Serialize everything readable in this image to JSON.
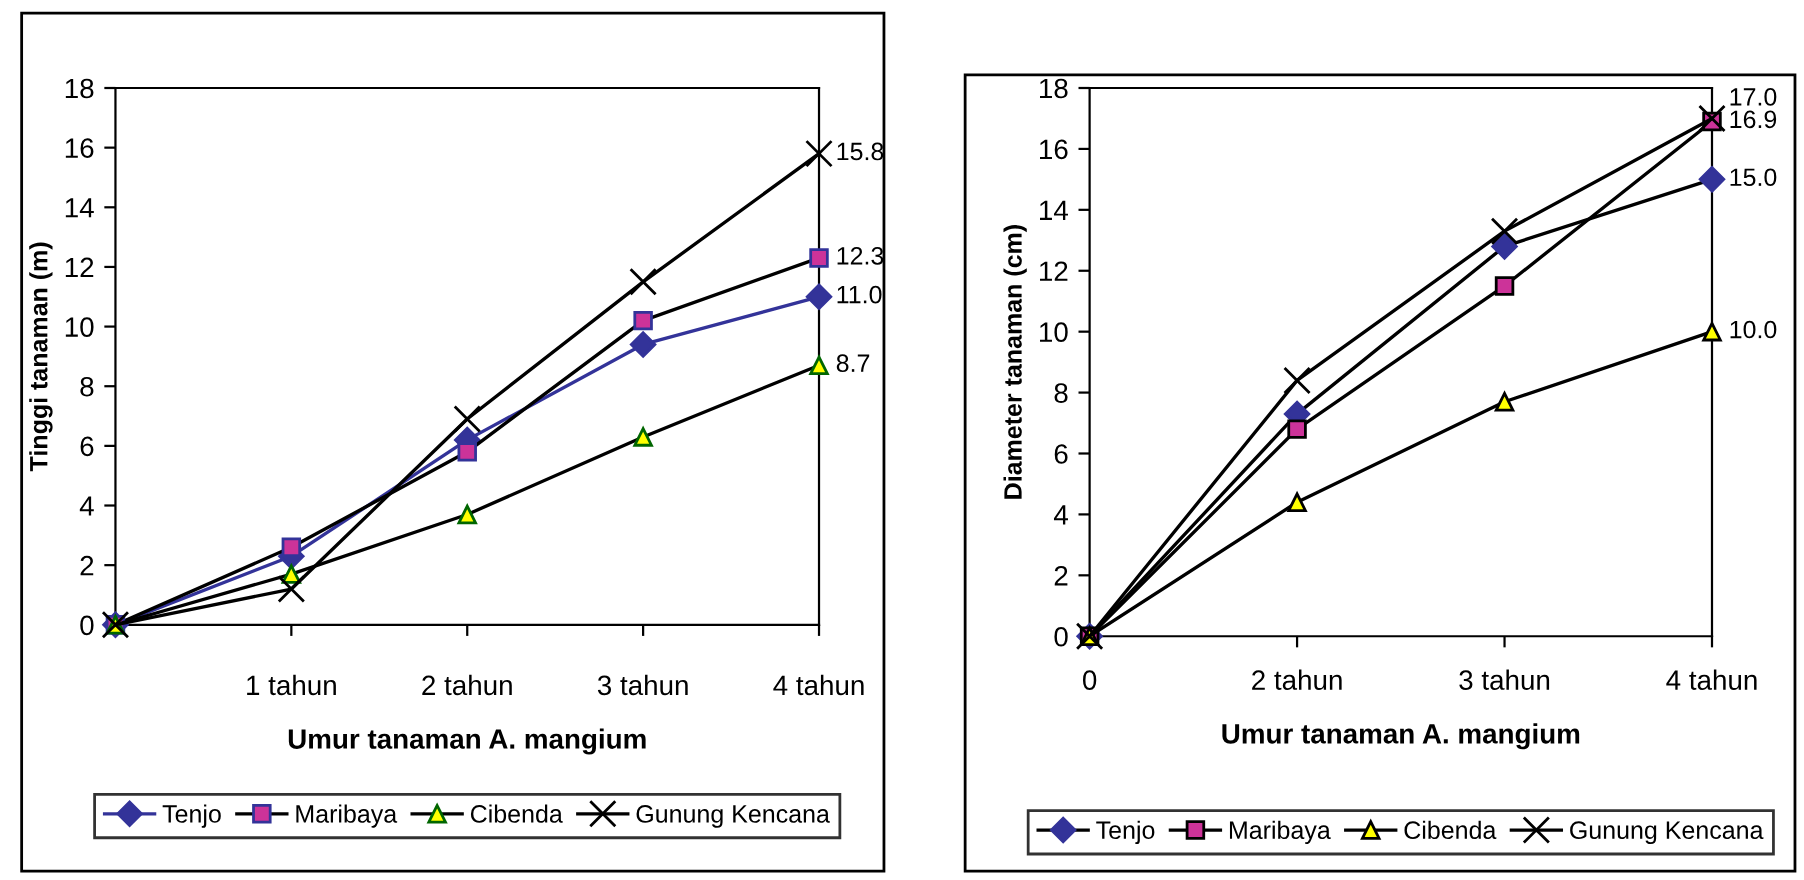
{
  "chart_data": [
    {
      "type": "line",
      "ylabel": "Tinggi tanaman (m)",
      "xlabel": "Umur tanaman A. mangium",
      "categories": [
        null,
        "1 tahun",
        "2 tahun",
        "3 tahun",
        "4 tahun"
      ],
      "ylim": [
        0,
        18
      ],
      "yticks": [
        0,
        2,
        4,
        6,
        8,
        10,
        12,
        14,
        16,
        18
      ],
      "grid": false,
      "legend": "bottom",
      "series": [
        {
          "name": "Tenjo",
          "color": "#333399",
          "marker": "diamond",
          "values": [
            0,
            2.3,
            6.2,
            9.4,
            11.0
          ],
          "value_labels": [
            null,
            null,
            null,
            null,
            "11.0"
          ]
        },
        {
          "name": "Maribaya",
          "color": "#cc3399",
          "marker": "square",
          "values": [
            0,
            2.6,
            5.8,
            10.2,
            12.3
          ],
          "value_labels": [
            null,
            null,
            null,
            null,
            "12.3"
          ]
        },
        {
          "name": "Cibenda",
          "color": "#ffff00",
          "marker": "triangle",
          "values": [
            0,
            1.7,
            3.7,
            6.3,
            8.7
          ],
          "value_labels": [
            null,
            null,
            null,
            null,
            "8.7"
          ]
        },
        {
          "name": "Gunung Kencana",
          "color": "#000000",
          "marker": "cross",
          "values": [
            0,
            1.2,
            6.9,
            11.5,
            15.8
          ],
          "value_labels": [
            null,
            null,
            null,
            null,
            "15.8"
          ]
        }
      ]
    },
    {
      "type": "line",
      "ylabel": "Diameter tanaman (cm)",
      "xlabel": "Umur tanaman A. mangium",
      "categories": [
        "0",
        "2 tahun",
        "3 tahun",
        "4 tahun"
      ],
      "ylim": [
        0,
        18
      ],
      "yticks": [
        0,
        2,
        4,
        6,
        8,
        10,
        12,
        14,
        16,
        18
      ],
      "grid": false,
      "legend": "bottom",
      "series": [
        {
          "name": "Tenjo",
          "color": "#333399",
          "marker": "diamond",
          "values": [
            0,
            7.3,
            12.8,
            15.0
          ],
          "value_labels": [
            null,
            null,
            null,
            "15.0"
          ]
        },
        {
          "name": "Maribaya",
          "color": "#cc3399",
          "marker": "square",
          "values": [
            0,
            6.8,
            11.5,
            16.9
          ],
          "value_labels": [
            null,
            null,
            null,
            "16.9"
          ]
        },
        {
          "name": "Cibenda",
          "color": "#ffff00",
          "marker": "triangle",
          "values": [
            0,
            4.4,
            7.7,
            10.0
          ],
          "value_labels": [
            null,
            null,
            null,
            "10.0"
          ]
        },
        {
          "name": "Gunung Kencana",
          "color": "#000000",
          "marker": "cross",
          "values": [
            0,
            8.4,
            13.3,
            17.0
          ],
          "value_labels": [
            null,
            null,
            null,
            "17.0"
          ]
        }
      ]
    }
  ]
}
